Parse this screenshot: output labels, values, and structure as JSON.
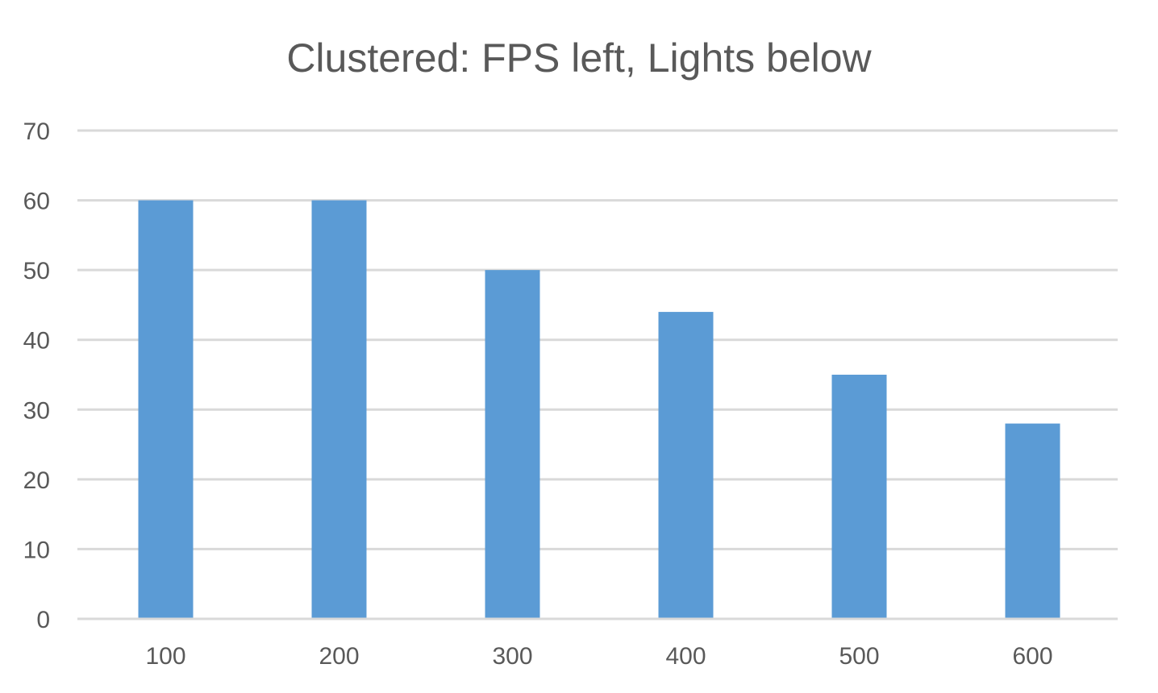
{
  "chart_data": {
    "type": "bar",
    "title": "Clustered: FPS left, Lights below",
    "xlabel": "",
    "ylabel": "",
    "categories": [
      "100",
      "200",
      "300",
      "400",
      "500",
      "600"
    ],
    "series": [
      {
        "values": [
          60,
          60,
          50,
          44,
          35,
          28
        ]
      }
    ],
    "ylim": [
      0,
      70
    ],
    "yticks": [
      0,
      10,
      20,
      30,
      40,
      50,
      60,
      70
    ],
    "grid": true,
    "legend": "none",
    "colors": {
      "bar": "#5B9BD5",
      "grid": "#D9D9D9",
      "text": "#595959"
    }
  }
}
